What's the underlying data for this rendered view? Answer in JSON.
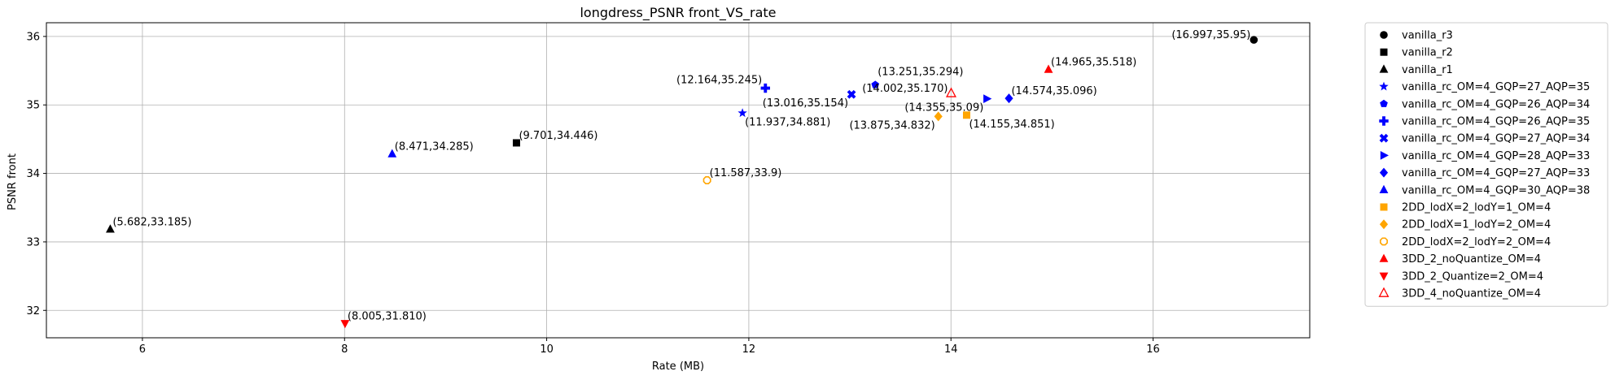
{
  "chart_data": {
    "type": "scatter",
    "title": "longdress_PSNR front_VS_rate",
    "xlabel": "Rate (MB)",
    "ylabel": "PSNR front",
    "xlim": [
      5.05,
      17.55
    ],
    "ylim": [
      31.6,
      36.2
    ],
    "xticks": [
      6,
      8,
      10,
      12,
      14,
      16
    ],
    "yticks": [
      32,
      33,
      34,
      35,
      36
    ],
    "grid": true,
    "legend_position": "outside right",
    "series": [
      {
        "name": "vanilla_r3",
        "marker": "circle",
        "color": "#000000",
        "points": [
          {
            "x": 16.997,
            "y": 35.95,
            "label": "(16.997,35.95)",
            "lpos": "l"
          }
        ]
      },
      {
        "name": "vanilla_r2",
        "marker": "square",
        "color": "#000000",
        "points": [
          {
            "x": 9.701,
            "y": 34.446,
            "label": "(9.701,34.446)",
            "lpos": "r"
          }
        ]
      },
      {
        "name": "vanilla_r1",
        "marker": "triangle-up",
        "color": "#000000",
        "points": [
          {
            "x": 5.682,
            "y": 33.185,
            "label": "(5.682,33.185)",
            "lpos": "r"
          }
        ]
      },
      {
        "name": "vanilla_rc_OM=4_GQP=27_AQP=35",
        "marker": "star",
        "color": "#0000ff",
        "points": [
          {
            "x": 11.937,
            "y": 34.881,
            "label": "(11.937,34.881)",
            "lpos": "br"
          }
        ]
      },
      {
        "name": "vanilla_rc_OM=4_GQP=26_AQP=34",
        "marker": "pentagon",
        "color": "#0000ff",
        "points": [
          {
            "x": 13.251,
            "y": 35.294,
            "label": "(13.251,35.294)",
            "lpos": "ar"
          }
        ]
      },
      {
        "name": "vanilla_rc_OM=4_GQP=26_AQP=35",
        "marker": "plus",
        "color": "#0000ff",
        "points": [
          {
            "x": 12.164,
            "y": 35.245,
            "label": "(12.164,35.245)",
            "lpos": "al"
          }
        ]
      },
      {
        "name": "vanilla_rc_OM=4_GQP=27_AQP=34",
        "marker": "x",
        "color": "#0000ff",
        "points": [
          {
            "x": 13.016,
            "y": 35.154,
            "label": "(13.016,35.154)",
            "lpos": "bl"
          }
        ]
      },
      {
        "name": "vanilla_rc_OM=4_GQP=28_AQP=33",
        "marker": "triangle-right",
        "color": "#0000ff",
        "points": [
          {
            "x": 14.355,
            "y": 35.09,
            "label": "(14.355,35.09)",
            "lpos": "bl"
          }
        ]
      },
      {
        "name": "vanilla_rc_OM=4_GQP=27_AQP=33",
        "marker": "diamond",
        "color": "#0000ff",
        "points": [
          {
            "x": 14.574,
            "y": 35.096,
            "label": "(14.574,35.096)",
            "lpos": "r"
          }
        ]
      },
      {
        "name": "vanilla_rc_OM=4_GQP=30_AQP=38",
        "marker": "triangle-up",
        "color": "#0000ff",
        "points": [
          {
            "x": 8.471,
            "y": 34.285,
            "label": "(8.471,34.285)",
            "lpos": "r"
          }
        ]
      },
      {
        "name": "2DD_lodX=2_lodY=1_OM=4",
        "marker": "square",
        "color": "#ffa500",
        "points": [
          {
            "x": 14.155,
            "y": 34.851,
            "label": "(14.155,34.851)",
            "lpos": "br"
          }
        ]
      },
      {
        "name": "2DD_lodX=1_lodY=2_OM=4",
        "marker": "diamond",
        "color": "#ffa500",
        "points": [
          {
            "x": 13.875,
            "y": 34.832,
            "label": "(13.875,34.832)",
            "lpos": "bl"
          }
        ]
      },
      {
        "name": "2DD_lodX=2_lodY=2_OM=4",
        "marker": "octagon",
        "color": "#ffa500",
        "points": [
          {
            "x": 11.587,
            "y": 33.9,
            "label": "(11.587,33.9)",
            "lpos": "r"
          }
        ]
      },
      {
        "name": "3DD_2_noQuantize_OM=4",
        "marker": "triangle-up",
        "color": "#ff0000",
        "points": [
          {
            "x": 14.965,
            "y": 35.518,
            "label": "(14.965,35.518)",
            "lpos": "r"
          }
        ]
      },
      {
        "name": "3DD_2_Quantize=2_OM=4",
        "marker": "triangle-down",
        "color": "#ff0000",
        "points": [
          {
            "x": 8.005,
            "y": 31.81,
            "label": "(8.005,31.810)",
            "lpos": "r"
          }
        ]
      },
      {
        "name": "3DD_4_noQuantize_OM=4",
        "marker": "triangle-up-open",
        "color": "#ff0000",
        "points": [
          {
            "x": 14.002,
            "y": 35.17,
            "label": "(14.002,35.170)",
            "lpos": "l"
          }
        ]
      }
    ]
  }
}
